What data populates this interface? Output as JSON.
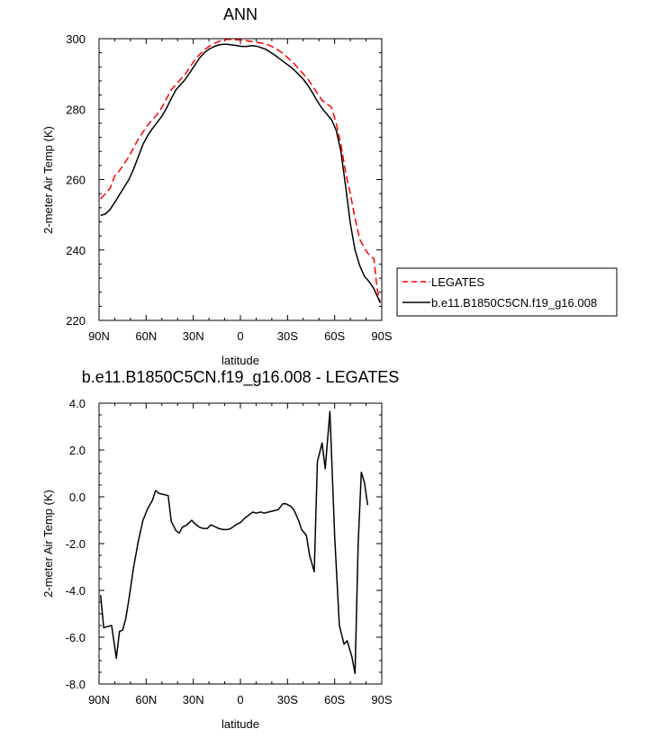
{
  "chart_data": [
    {
      "type": "line",
      "title": "ANN",
      "xlabel": "latitude",
      "ylabel": "2-meter Air Temp (K)",
      "x_tick_values": [
        90,
        60,
        30,
        0,
        -30,
        -60,
        -90
      ],
      "x_tick_labels": [
        "90N",
        "60N",
        "30N",
        "0",
        "30S",
        "60S",
        "90S"
      ],
      "xlim": [
        90,
        -90
      ],
      "ylim": [
        220,
        300
      ],
      "y_tick_values": [
        220,
        240,
        260,
        280,
        300
      ],
      "y_tick_labels": [
        "220",
        "240",
        "260",
        "280",
        "300"
      ],
      "legend_position": "right",
      "series": [
        {
          "name": "LEGATES",
          "color": "#ff0000",
          "dash": "dashed",
          "points": [
            [
              89,
              254.5
            ],
            [
              86,
              256
            ],
            [
              83,
              257.5
            ],
            [
              80,
              261
            ],
            [
              77,
              262.5
            ],
            [
              74,
              264.5
            ],
            [
              71,
              266.5
            ],
            [
              68,
              269
            ],
            [
              65,
              271.5
            ],
            [
              62,
              273.5
            ],
            [
              59,
              275.5
            ],
            [
              56,
              277
            ],
            [
              53,
              278.5
            ],
            [
              50,
              280.5
            ],
            [
              47,
              283
            ],
            [
              44,
              285.5
            ],
            [
              41,
              287
            ],
            [
              38,
              288.5
            ],
            [
              35,
              290
            ],
            [
              32,
              292
            ],
            [
              29,
              294
            ],
            [
              26,
              295.5
            ],
            [
              23,
              296.8
            ],
            [
              20,
              297.8
            ],
            [
              17,
              298.5
            ],
            [
              14,
              299.2
            ],
            [
              11,
              299.6
            ],
            [
              8,
              299.8
            ],
            [
              5,
              299.8
            ],
            [
              2,
              299.7
            ],
            [
              -1,
              299.6
            ],
            [
              -4,
              299.4
            ],
            [
              -7,
              299.2
            ],
            [
              -10,
              299
            ],
            [
              -13,
              298.8
            ],
            [
              -16,
              298.5
            ],
            [
              -19,
              298
            ],
            [
              -22,
              297.3
            ],
            [
              -25,
              296.5
            ],
            [
              -28,
              295.5
            ],
            [
              -31,
              294.2
            ],
            [
              -34,
              293
            ],
            [
              -37,
              291.5
            ],
            [
              -40,
              290
            ],
            [
              -43,
              288.5
            ],
            [
              -46,
              286.5
            ],
            [
              -49,
              284.5
            ],
            [
              -52,
              282.5
            ],
            [
              -55,
              281.5
            ],
            [
              -58,
              280.5
            ],
            [
              -61,
              276
            ],
            [
              -64,
              270
            ],
            [
              -67,
              262
            ],
            [
              -70,
              256
            ],
            [
              -73,
              249
            ],
            [
              -76,
              243
            ],
            [
              -79,
              240.5
            ],
            [
              -82,
              238.5
            ],
            [
              -85,
              237.5
            ],
            [
              -87,
              229
            ],
            [
              -89,
              225
            ]
          ]
        },
        {
          "name": "b.e11.B1850C5CN.f19_g16.008",
          "color": "#000000",
          "dash": "solid",
          "points": [
            [
              89,
              249.8
            ],
            [
              86,
              250.2
            ],
            [
              83,
              251.5
            ],
            [
              80,
              253.5
            ],
            [
              77,
              255.7
            ],
            [
              74,
              257.8
            ],
            [
              71,
              260
            ],
            [
              68,
              263
            ],
            [
              65,
              266.5
            ],
            [
              62,
              270
            ],
            [
              59,
              272.5
            ],
            [
              56,
              274.5
            ],
            [
              53,
              276.2
            ],
            [
              50,
              278
            ],
            [
              47,
              280.3
            ],
            [
              44,
              283
            ],
            [
              41,
              285.5
            ],
            [
              38,
              287
            ],
            [
              35,
              288.5
            ],
            [
              32,
              290.5
            ],
            [
              29,
              292.5
            ],
            [
              26,
              294.5
            ],
            [
              23,
              296
            ],
            [
              20,
              297
            ],
            [
              17,
              297.7
            ],
            [
              14,
              298.2
            ],
            [
              11,
              298.4
            ],
            [
              8,
              298.4
            ],
            [
              5,
              298.2
            ],
            [
              2,
              298
            ],
            [
              -1,
              297.8
            ],
            [
              -4,
              297.8
            ],
            [
              -7,
              298
            ],
            [
              -10,
              297.9
            ],
            [
              -13,
              297.5
            ],
            [
              -16,
              297
            ],
            [
              -19,
              296.2
            ],
            [
              -22,
              295.3
            ],
            [
              -25,
              294.3
            ],
            [
              -28,
              293.3
            ],
            [
              -31,
              292.3
            ],
            [
              -34,
              291.2
            ],
            [
              -37,
              289.9
            ],
            [
              -40,
              288.5
            ],
            [
              -43,
              286.7
            ],
            [
              -46,
              284.6
            ],
            [
              -49,
              282.2
            ],
            [
              -52,
              280.2
            ],
            [
              -55,
              278.6
            ],
            [
              -58,
              277
            ],
            [
              -61,
              274
            ],
            [
              -64,
              268
            ],
            [
              -67,
              258
            ],
            [
              -70,
              247.5
            ],
            [
              -73,
              240
            ],
            [
              -76,
              235.5
            ],
            [
              -79,
              232.5
            ],
            [
              -82,
              231
            ],
            [
              -85,
              229
            ],
            [
              -87,
              227
            ],
            [
              -89,
              225
            ]
          ]
        }
      ]
    },
    {
      "type": "line",
      "title": "b.e11.B1850C5CN.f19_g16.008 - LEGATES",
      "xlabel": "latitude",
      "ylabel": "2-meter Air Temp (K)",
      "x_tick_values": [
        90,
        60,
        30,
        0,
        -30,
        -60,
        -90
      ],
      "x_tick_labels": [
        "90N",
        "60N",
        "30N",
        "0",
        "30S",
        "60S",
        "90S"
      ],
      "xlim": [
        90,
        -90
      ],
      "ylim": [
        -8,
        4
      ],
      "y_tick_values": [
        -8,
        -6,
        -4,
        -2,
        0,
        2,
        4
      ],
      "y_tick_labels": [
        "-8.0",
        "-6.0",
        "-4.0",
        "-2.0",
        "0.0",
        "2.0",
        "4.0"
      ],
      "series": [
        {
          "color": "#000000",
          "dash": "solid",
          "points": [
            [
              89,
              -4.2
            ],
            [
              87,
              -5.6
            ],
            [
              85,
              -5.55
            ],
            [
              82,
              -5.5
            ],
            [
              79,
              -6.9
            ],
            [
              77,
              -5.75
            ],
            [
              75,
              -5.7
            ],
            [
              73,
              -5.2
            ],
            [
              71,
              -4.4
            ],
            [
              68,
              -3
            ],
            [
              65,
              -1.9
            ],
            [
              62,
              -1
            ],
            [
              59,
              -0.5
            ],
            [
              56,
              -0.15
            ],
            [
              54,
              0.27
            ],
            [
              52,
              0.15
            ],
            [
              49,
              0.1
            ],
            [
              46,
              0.05
            ],
            [
              44,
              -1.05
            ],
            [
              41,
              -1.45
            ],
            [
              39,
              -1.55
            ],
            [
              37,
              -1.3
            ],
            [
              34,
              -1.2
            ],
            [
              31,
              -1.0
            ],
            [
              29,
              -1.15
            ],
            [
              26,
              -1.3
            ],
            [
              24,
              -1.35
            ],
            [
              21,
              -1.35
            ],
            [
              19,
              -1.2
            ],
            [
              17,
              -1.25
            ],
            [
              14,
              -1.35
            ],
            [
              11,
              -1.4
            ],
            [
              8,
              -1.4
            ],
            [
              6,
              -1.35
            ],
            [
              3,
              -1.2
            ],
            [
              0,
              -1.1
            ],
            [
              -3,
              -0.9
            ],
            [
              -5,
              -0.8
            ],
            [
              -8,
              -0.65
            ],
            [
              -10,
              -0.7
            ],
            [
              -13,
              -0.65
            ],
            [
              -15,
              -0.7
            ],
            [
              -18,
              -0.65
            ],
            [
              -21,
              -0.6
            ],
            [
              -24,
              -0.55
            ],
            [
              -27,
              -0.3
            ],
            [
              -29,
              -0.3
            ],
            [
              -32,
              -0.4
            ],
            [
              -34,
              -0.55
            ],
            [
              -37,
              -1.0
            ],
            [
              -39,
              -1.4
            ],
            [
              -42,
              -1.65
            ],
            [
              -44,
              -2.5
            ],
            [
              -47,
              -3.2
            ],
            [
              -49,
              1.5
            ],
            [
              -52,
              2.3
            ],
            [
              -54,
              1.2
            ],
            [
              -57,
              3.65
            ],
            [
              -60,
              -1.7
            ],
            [
              -63,
              -5.5
            ],
            [
              -66,
              -6.3
            ],
            [
              -68,
              -6.15
            ],
            [
              -71,
              -6.85
            ],
            [
              -73,
              -7.55
            ],
            [
              -75,
              -2.0
            ],
            [
              -77,
              1.05
            ],
            [
              -79,
              0.6
            ],
            [
              -81,
              -0.35
            ]
          ]
        }
      ]
    }
  ]
}
